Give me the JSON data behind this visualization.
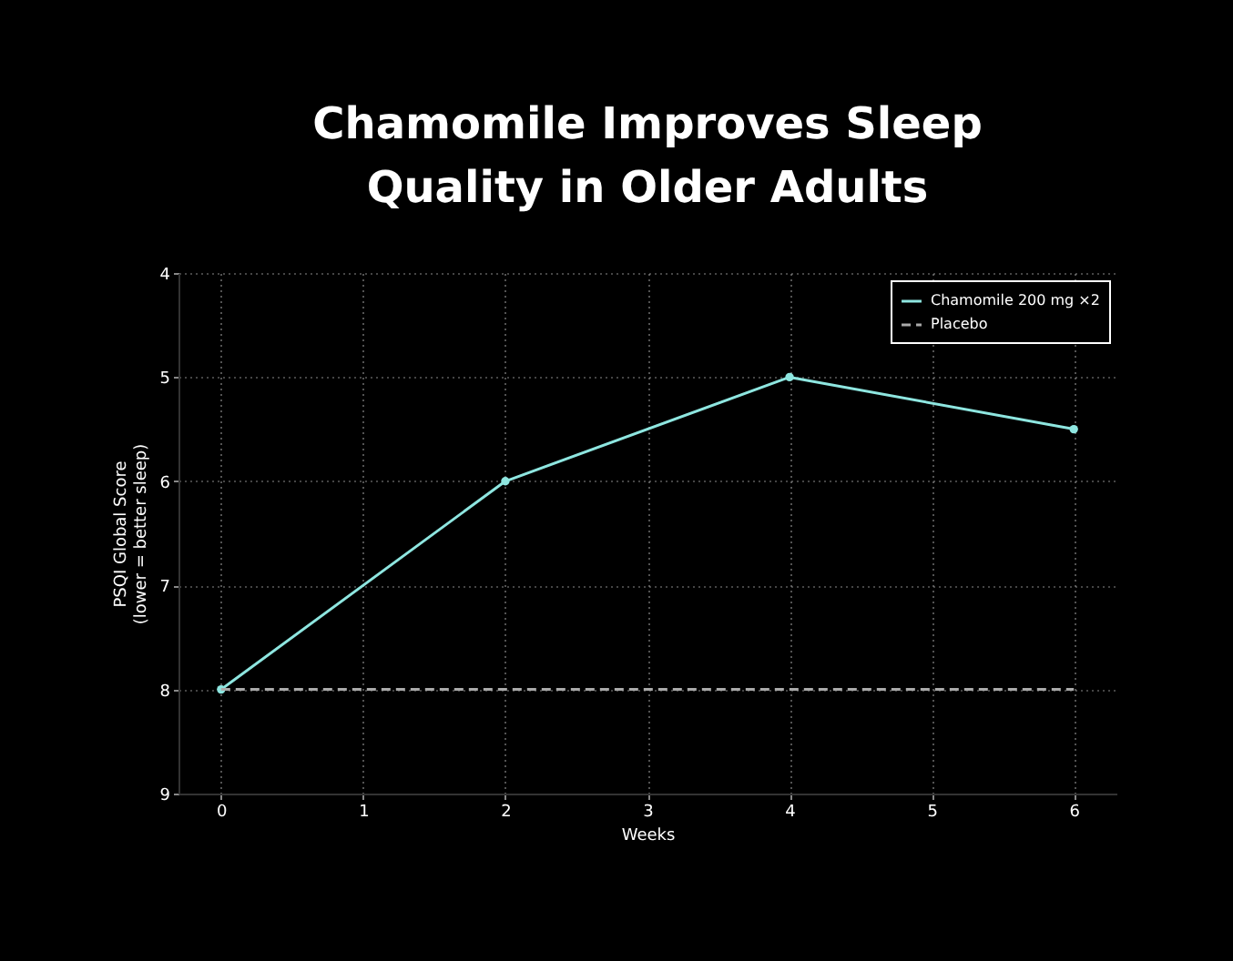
{
  "chart_data": {
    "type": "line",
    "title": "Chamomile Improves Sleep Quality in Older Adults",
    "xlabel": "Weeks",
    "ylabel": "PSQI Global Score\n(lower = better sleep)",
    "x": [
      0,
      2,
      4,
      6
    ],
    "series": [
      {
        "name": "Chamomile 200 mg ×2",
        "color": "#8ee6e0",
        "values": [
          8,
          6,
          5,
          5.5
        ],
        "marker": "circle",
        "line_style": "solid"
      },
      {
        "name": "Placebo",
        "color": "#aaaaaa",
        "x": [
          0,
          6
        ],
        "values": [
          8,
          8
        ],
        "marker": "none",
        "line_style": "dashed"
      }
    ],
    "xlim": [
      -0.3,
      6.3
    ],
    "xticks": [
      0,
      1,
      2,
      3,
      4,
      5,
      6
    ],
    "ylim": [
      9,
      4
    ],
    "yticks": [
      4,
      5,
      6,
      7,
      8,
      9
    ],
    "grid": true,
    "legend": "top right"
  }
}
